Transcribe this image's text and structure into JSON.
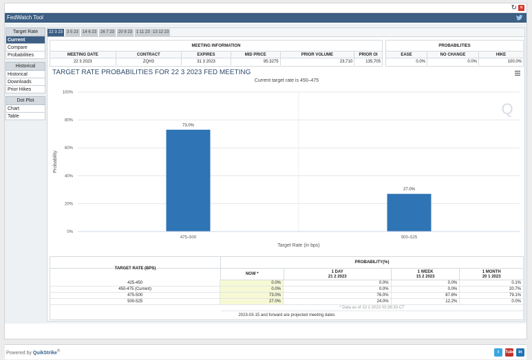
{
  "app": {
    "title": "FedWatch Tool"
  },
  "sidebar": {
    "groups": [
      {
        "heading": "Target Rate",
        "items": [
          "Current",
          "Compare",
          "Probabilities"
        ]
      },
      {
        "heading": "Historical",
        "items": [
          "Historical",
          "Downloads",
          "Prior Hikes"
        ]
      },
      {
        "heading": "Dot Plot",
        "items": [
          "Chart",
          "Table"
        ]
      }
    ],
    "active": "Current"
  },
  "tabs": [
    "22 3 23",
    "3 5 23",
    "14 6 23",
    "26 7 23",
    "20 9 23",
    "1 11 23",
    "13 12 23"
  ],
  "meeting_info": {
    "title": "MEETING INFORMATION",
    "headers": [
      "MEETING DATE",
      "CONTRACT",
      "EXPIRES",
      "MID PRICE",
      "PRIOR VOLUME",
      "PRIOR OI"
    ],
    "values": [
      "22 3 2023",
      "ZQH3",
      "31 3 2023",
      "95.3275",
      "23,710",
      "135,705"
    ]
  },
  "probabilities": {
    "title": "PROBABILITIES",
    "headers": [
      "EASE",
      "NO CHANGE",
      "HIKE"
    ],
    "values": [
      "0.0%",
      "0.0%",
      "100.0%"
    ]
  },
  "chart_title": "TARGET RATE PROBABILITIES FOR 22 3 2023 FED MEETING",
  "chart_subtitle": "Current target rate is 450–475",
  "chart_data": {
    "type": "bar",
    "title": "TARGET RATE PROBABILITIES FOR 22 3 2023 FED MEETING",
    "subtitle": "Current target rate is 450–475",
    "categories": [
      "475–500",
      "500–525"
    ],
    "values": [
      73.0,
      27.0
    ],
    "value_labels": [
      "73.0%",
      "27.0%"
    ],
    "xlabel": "Target Rate (in bps)",
    "ylabel": "Probability",
    "ylim": [
      0,
      100
    ],
    "yticks": [
      "0%",
      "20%",
      "40%",
      "60%",
      "80%",
      "100%"
    ],
    "grid": true,
    "color": "#2f74b5"
  },
  "bottom_table": {
    "col0_header": "TARGET RATE (BPS)",
    "group_header": "PROBABILITY(%)",
    "columns": [
      {
        "label": "NOW *",
        "date": ""
      },
      {
        "label": "1 DAY",
        "date": "21 2 2023"
      },
      {
        "label": "1 WEEK",
        "date": "15 2 2023"
      },
      {
        "label": "1 MONTH",
        "date": "20 1 2023"
      }
    ],
    "rows": [
      [
        "425-450",
        "0.0%",
        "0.0%",
        "0.0%",
        "0.1%"
      ],
      [
        "450-475 (Current)",
        "0.0%",
        "0.0%",
        "0.0%",
        "20.7%"
      ],
      [
        "475-500",
        "73.0%",
        "76.0%",
        "87.8%",
        "79.1%"
      ],
      [
        "500-525",
        "27.0%",
        "24.0%",
        "12.2%",
        "0.0%"
      ]
    ],
    "footnote": "* Data as of 22 2 2023 03:38:33 CT",
    "projected_note": "2023-03-15 and forward are projected meeting dates"
  },
  "footer": {
    "powered_by": "Powered by",
    "brand": "QuikStrike",
    "reg": "®"
  },
  "social": [
    {
      "name": "twitter-icon",
      "color": "#3aa5e0",
      "text": "t"
    },
    {
      "name": "youtube-icon",
      "color": "#c4302b",
      "text": "Tube"
    },
    {
      "name": "linkedin-icon",
      "color": "#2072b0",
      "text": "in"
    }
  ]
}
